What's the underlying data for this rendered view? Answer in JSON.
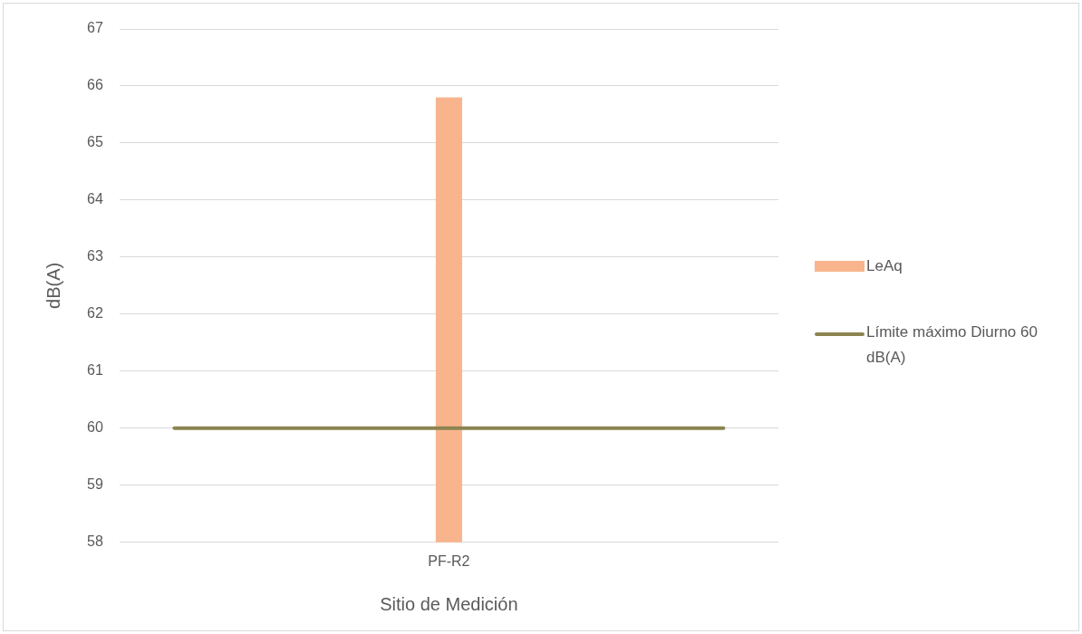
{
  "chart_data": {
    "type": "bar",
    "xlabel": "Sitio de Medición",
    "ylabel": "dB(A)",
    "categories": [
      "PF-R2"
    ],
    "series": [
      {
        "name": "LeAq",
        "color": "#f8b58d",
        "values": [
          65.8
        ]
      }
    ],
    "ylim": [
      58,
      67
    ],
    "yticks": [
      58,
      59,
      60,
      61,
      62,
      63,
      64,
      65,
      66,
      67
    ],
    "grid": "y",
    "legend": "right",
    "ref_lines": [
      {
        "axis": "y",
        "value": 60,
        "label": "Límite máximo Diurno 60 dB(A)",
        "color": "#8c8450"
      }
    ]
  }
}
